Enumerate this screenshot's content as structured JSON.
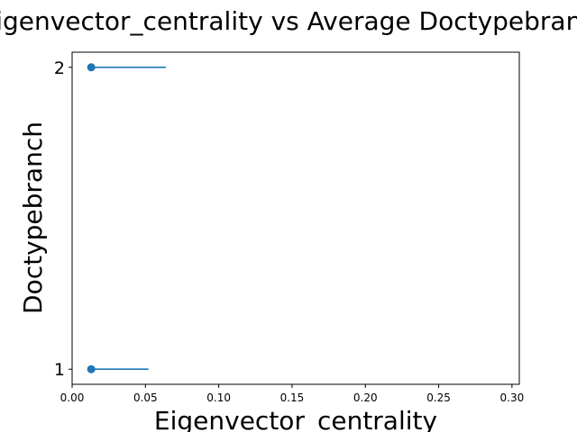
{
  "chart_data": {
    "type": "scatter",
    "title": "Eigenvector_centrality vs Average Doctypebranch",
    "xlabel": "Eigenvector_centrality",
    "ylabel": "Doctypebranch",
    "xlim": [
      0.0,
      0.305
    ],
    "ylim": [
      0.95,
      2.05
    ],
    "x_ticks": [
      0.0,
      0.05,
      0.1,
      0.15,
      0.2,
      0.25,
      0.3
    ],
    "x_tick_labels": [
      "0.00",
      "0.05",
      "0.10",
      "0.15",
      "0.20",
      "0.25",
      "0.30"
    ],
    "y_ticks": [
      1,
      2
    ],
    "y_tick_labels": [
      "1",
      "2"
    ],
    "grid": false,
    "series": [
      {
        "color": "#1f77b4",
        "points": [
          {
            "x": 0.013,
            "y": 1,
            "xerr_low": 0.0,
            "xerr_high": 0.039
          },
          {
            "x": 0.013,
            "y": 2,
            "xerr_low": 0.0,
            "xerr_high": 0.051
          }
        ]
      }
    ]
  }
}
